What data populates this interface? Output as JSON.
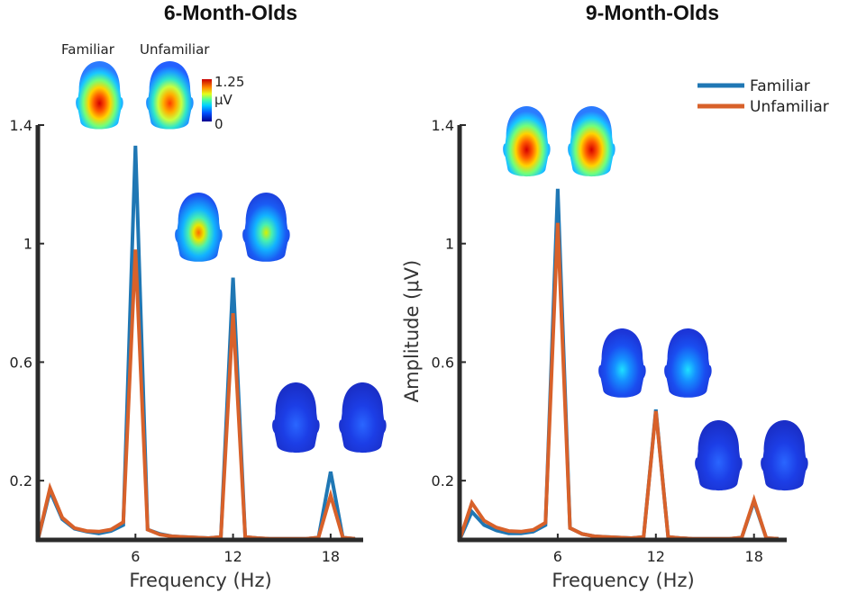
{
  "figure": {
    "colors": {
      "familiar": "#1f77b4",
      "unfamiliar": "#d8612a",
      "axis": "#2b2b2b"
    },
    "legend": {
      "familiar": "Familiar",
      "unfamiliar": "Unfamiliar",
      "placement": "top-right"
    },
    "topomap_labels": {
      "familiar": "Familiar",
      "unfamiliar": "Unfamiliar"
    },
    "colorbar": {
      "max_label": "1.25",
      "unit_label": "μV",
      "min_label": "0",
      "colormap": "jet"
    }
  },
  "chart_data": [
    {
      "type": "line",
      "title": "6-Month-Olds",
      "xlabel": "Frequency (Hz)",
      "ylabel": "",
      "xlim": [
        0,
        20
      ],
      "ylim": [
        0,
        1.4
      ],
      "xticks": [
        6,
        12,
        18
      ],
      "xtick_labels": [
        "6",
        "12",
        "18"
      ],
      "yticks": [
        0.2,
        0.6,
        1,
        1.4
      ],
      "ytick_labels": [
        "0.2",
        "0.6",
        "1",
        "1.4"
      ],
      "grid": false,
      "series": [
        {
          "name": "Familiar",
          "x": [
            0,
            0.75,
            1.5,
            2.25,
            3,
            3.75,
            4.5,
            5.25,
            6,
            6.75,
            7.5,
            8.25,
            9,
            9.75,
            10.5,
            11.25,
            12,
            12.75,
            13.5,
            14.25,
            15,
            15.75,
            16.5,
            17.25,
            18,
            18.75,
            19.5
          ],
          "y": [
            0,
            0.165,
            0.07,
            0.038,
            0.028,
            0.022,
            0.03,
            0.05,
            1.33,
            0.035,
            0.02,
            0.012,
            0.01,
            0.008,
            0.006,
            0.01,
            0.885,
            0.01,
            0.006,
            0.004,
            0.004,
            0.004,
            0.004,
            0.008,
            0.23,
            0.008,
            0.004
          ]
        },
        {
          "name": "Unfamiliar",
          "x": [
            0,
            0.75,
            1.5,
            2.25,
            3,
            3.75,
            4.5,
            5.25,
            6,
            6.75,
            7.5,
            8.25,
            9,
            9.75,
            10.5,
            11.25,
            12,
            12.75,
            13.5,
            14.25,
            15,
            15.75,
            16.5,
            17.25,
            18,
            18.75,
            19.5
          ],
          "y": [
            0,
            0.175,
            0.075,
            0.04,
            0.03,
            0.028,
            0.035,
            0.06,
            0.98,
            0.035,
            0.018,
            0.012,
            0.01,
            0.008,
            0.006,
            0.01,
            0.765,
            0.01,
            0.006,
            0.004,
            0.004,
            0.004,
            0.004,
            0.008,
            0.15,
            0.008,
            0.004
          ]
        }
      ]
    },
    {
      "type": "line",
      "title": "9-Month-Olds",
      "xlabel": "Frequency (Hz)",
      "ylabel": "Amplitude (μV)",
      "xlim": [
        0,
        20
      ],
      "ylim": [
        0,
        1.4
      ],
      "xticks": [
        6,
        12,
        18
      ],
      "xtick_labels": [
        "6",
        "12",
        "18"
      ],
      "yticks": [
        0.2,
        0.6,
        1,
        1.4
      ],
      "ytick_labels": [
        "0.2",
        "0.6",
        "1",
        "1.4"
      ],
      "grid": false,
      "series": [
        {
          "name": "Familiar",
          "x": [
            0,
            0.75,
            1.5,
            2.25,
            3,
            3.75,
            4.5,
            5.25,
            6,
            6.75,
            7.5,
            8.25,
            9,
            9.75,
            10.5,
            11.25,
            12,
            12.75,
            13.5,
            14.25,
            15,
            15.75,
            16.5,
            17.25,
            18,
            18.75,
            19.5
          ],
          "y": [
            0,
            0.095,
            0.05,
            0.032,
            0.022,
            0.022,
            0.028,
            0.05,
            1.185,
            0.04,
            0.02,
            0.012,
            0.01,
            0.008,
            0.006,
            0.01,
            0.44,
            0.01,
            0.006,
            0.004,
            0.004,
            0.004,
            0.004,
            0.008,
            0.13,
            0.006,
            0.004
          ]
        },
        {
          "name": "Unfamiliar",
          "x": [
            0,
            0.75,
            1.5,
            2.25,
            3,
            3.75,
            4.5,
            5.25,
            6,
            6.75,
            7.5,
            8.25,
            9,
            9.75,
            10.5,
            11.25,
            12,
            12.75,
            13.5,
            14.25,
            15,
            15.75,
            16.5,
            17.25,
            18,
            18.75,
            19.5
          ],
          "y": [
            0,
            0.125,
            0.065,
            0.042,
            0.03,
            0.028,
            0.034,
            0.058,
            1.07,
            0.04,
            0.02,
            0.012,
            0.01,
            0.008,
            0.006,
            0.01,
            0.435,
            0.01,
            0.006,
            0.004,
            0.004,
            0.004,
            0.004,
            0.008,
            0.135,
            0.006,
            0.004
          ]
        }
      ]
    }
  ]
}
